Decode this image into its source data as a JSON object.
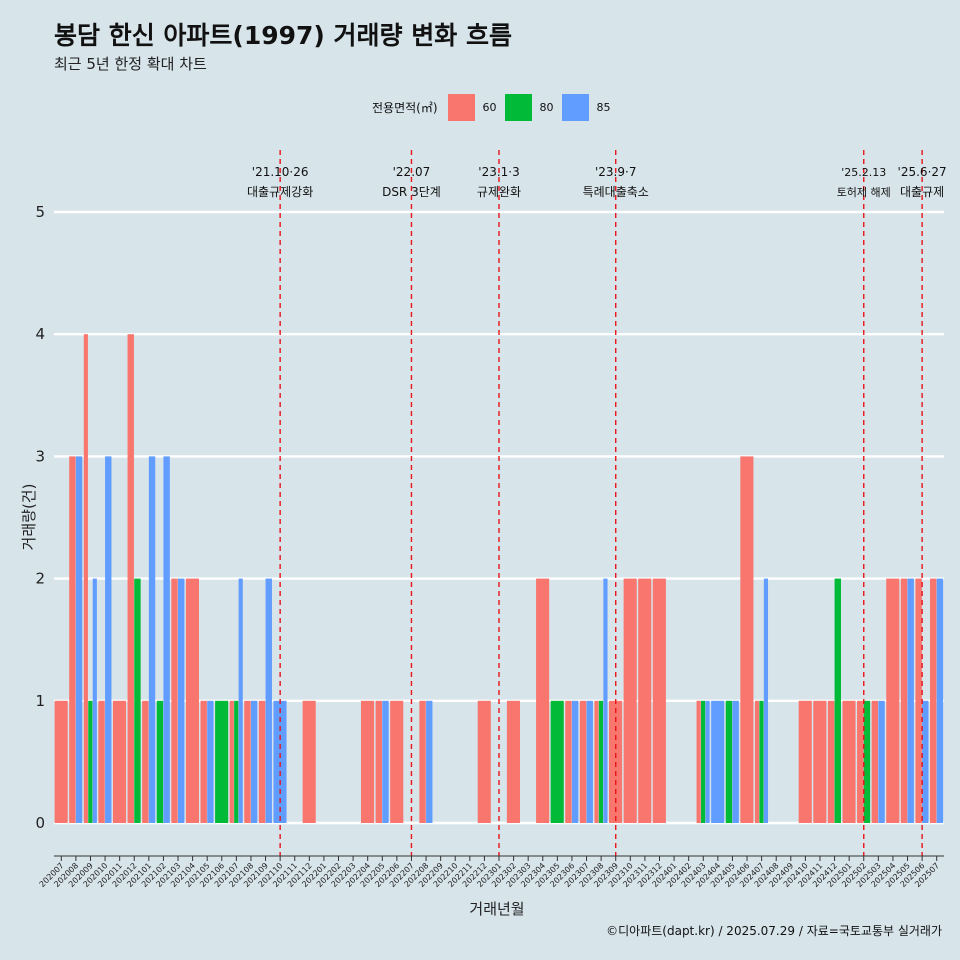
{
  "title": "봉담 한신 아파트(1997) 거래량 변화 흐름",
  "subtitle": "최근 5년 한정 확대 차트",
  "caption": "©디아파트(dapt.kr) / 2025.07.29 / 자료=국토교통부 실거래가",
  "legend": {
    "title": "전용면적(㎡)",
    "items": [
      {
        "label": "60",
        "color": "#f8766d"
      },
      {
        "label": "80",
        "color": "#00ba38"
      },
      {
        "label": "85",
        "color": "#619cff"
      }
    ]
  },
  "chart_data": {
    "type": "bar",
    "stacking": "dodge",
    "xlabel": "거래년월",
    "ylabel": "거래량(건)",
    "ylim": [
      0,
      5
    ],
    "yticks": [
      0,
      1,
      2,
      3,
      4,
      5
    ],
    "categories": [
      "202007",
      "202008",
      "202009",
      "202010",
      "202011",
      "202012",
      "202101",
      "202102",
      "202103",
      "202104",
      "202105",
      "202106",
      "202107",
      "202108",
      "202109",
      "202110",
      "202111",
      "202112",
      "202201",
      "202202",
      "202203",
      "202204",
      "202205",
      "202206",
      "202207",
      "202208",
      "202209",
      "202210",
      "202211",
      "202212",
      "202301",
      "202302",
      "202303",
      "202304",
      "202305",
      "202306",
      "202307",
      "202308",
      "202309",
      "202310",
      "202311",
      "202312",
      "202401",
      "202402",
      "202403",
      "202404",
      "202405",
      "202406",
      "202407",
      "202408",
      "202409",
      "202410",
      "202411",
      "202412",
      "202501",
      "202502",
      "202503",
      "202504",
      "202505",
      "202506",
      "202507"
    ],
    "series": [
      {
        "name": "60",
        "color": "#f8766d",
        "values": [
          1,
          3,
          4,
          1,
          1,
          4,
          1,
          0,
          2,
          2,
          1,
          0,
          1,
          1,
          1,
          0,
          0,
          1,
          0,
          0,
          0,
          1,
          1,
          1,
          0,
          1,
          0,
          0,
          0,
          1,
          0,
          1,
          0,
          2,
          0,
          1,
          1,
          1,
          1,
          2,
          2,
          2,
          0,
          0,
          1,
          0,
          0,
          3,
          1,
          0,
          0,
          1,
          1,
          1,
          1,
          1,
          1,
          2,
          2,
          2,
          2
        ]
      },
      {
        "name": "80",
        "color": "#00ba38",
        "values": [
          0,
          0,
          1,
          0,
          0,
          2,
          0,
          1,
          0,
          0,
          0,
          1,
          1,
          0,
          0,
          0,
          0,
          0,
          0,
          0,
          0,
          0,
          0,
          0,
          0,
          0,
          0,
          0,
          0,
          0,
          0,
          0,
          0,
          0,
          1,
          0,
          0,
          1,
          0,
          0,
          0,
          0,
          0,
          0,
          1,
          0,
          1,
          0,
          1,
          0,
          0,
          0,
          0,
          2,
          0,
          1,
          0,
          0,
          0,
          0,
          0
        ]
      },
      {
        "name": "85",
        "color": "#619cff",
        "values": [
          0,
          3,
          2,
          3,
          0,
          0,
          3,
          3,
          2,
          0,
          1,
          0,
          2,
          1,
          2,
          1,
          0,
          0,
          0,
          0,
          0,
          0,
          1,
          0,
          0,
          1,
          0,
          0,
          0,
          0,
          0,
          0,
          0,
          0,
          0,
          1,
          1,
          2,
          0,
          0,
          0,
          0,
          0,
          0,
          1,
          1,
          1,
          0,
          2,
          0,
          0,
          0,
          0,
          0,
          0,
          0,
          1,
          0,
          2,
          1,
          2
        ]
      }
    ],
    "events": [
      {
        "category": "202110",
        "date": "'21.10·26",
        "label": "대출규제강화"
      },
      {
        "category": "202207",
        "date": "'22.07",
        "label": "DSR 3단계"
      },
      {
        "category": "202301",
        "date": "'23.1·3",
        "label": "규제완화"
      },
      {
        "category": "202309",
        "date": "'23.9·7",
        "label": "특례대출축소"
      },
      {
        "category": "202502",
        "date": "'25.2.13",
        "label": "토허제 해제"
      },
      {
        "category": "202506",
        "date": "'25.6·27",
        "label": "대출규제"
      }
    ],
    "grid": true,
    "legend_position": "top"
  }
}
